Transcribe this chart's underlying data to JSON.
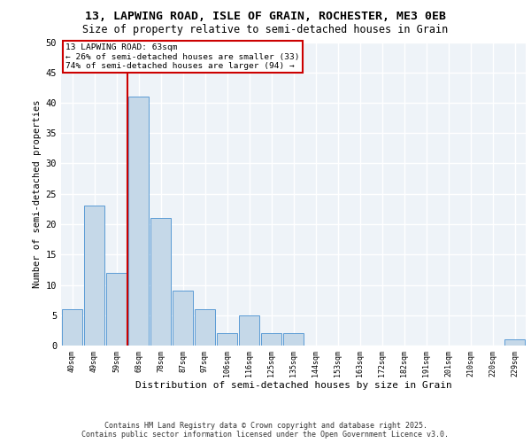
{
  "title_line1": "13, LAPWING ROAD, ISLE OF GRAIN, ROCHESTER, ME3 0EB",
  "title_line2": "Size of property relative to semi-detached houses in Grain",
  "xlabel": "Distribution of semi-detached houses by size in Grain",
  "ylabel": "Number of semi-detached properties",
  "categories": [
    "40sqm",
    "49sqm",
    "59sqm",
    "68sqm",
    "78sqm",
    "87sqm",
    "97sqm",
    "106sqm",
    "116sqm",
    "125sqm",
    "135sqm",
    "144sqm",
    "153sqm",
    "163sqm",
    "172sqm",
    "182sqm",
    "191sqm",
    "201sqm",
    "210sqm",
    "220sqm",
    "229sqm"
  ],
  "values": [
    6,
    23,
    12,
    41,
    21,
    9,
    6,
    2,
    5,
    2,
    2,
    0,
    0,
    0,
    0,
    0,
    0,
    0,
    0,
    0,
    1
  ],
  "bar_color": "#c5d8e8",
  "bar_edge_color": "#5b9bd5",
  "background_color": "#eef3f8",
  "grid_color": "#ffffff",
  "annotation_box_color": "#cc0000",
  "annotation_text": "13 LAPWING ROAD: 63sqm\n← 26% of semi-detached houses are smaller (33)\n74% of semi-detached houses are larger (94) →",
  "vline_color": "#cc0000",
  "ylim": [
    0,
    50
  ],
  "yticks": [
    0,
    5,
    10,
    15,
    20,
    25,
    30,
    35,
    40,
    45,
    50
  ],
  "footer_line1": "Contains HM Land Registry data © Crown copyright and database right 2025.",
  "footer_line2": "Contains public sector information licensed under the Open Government Licence v3.0."
}
